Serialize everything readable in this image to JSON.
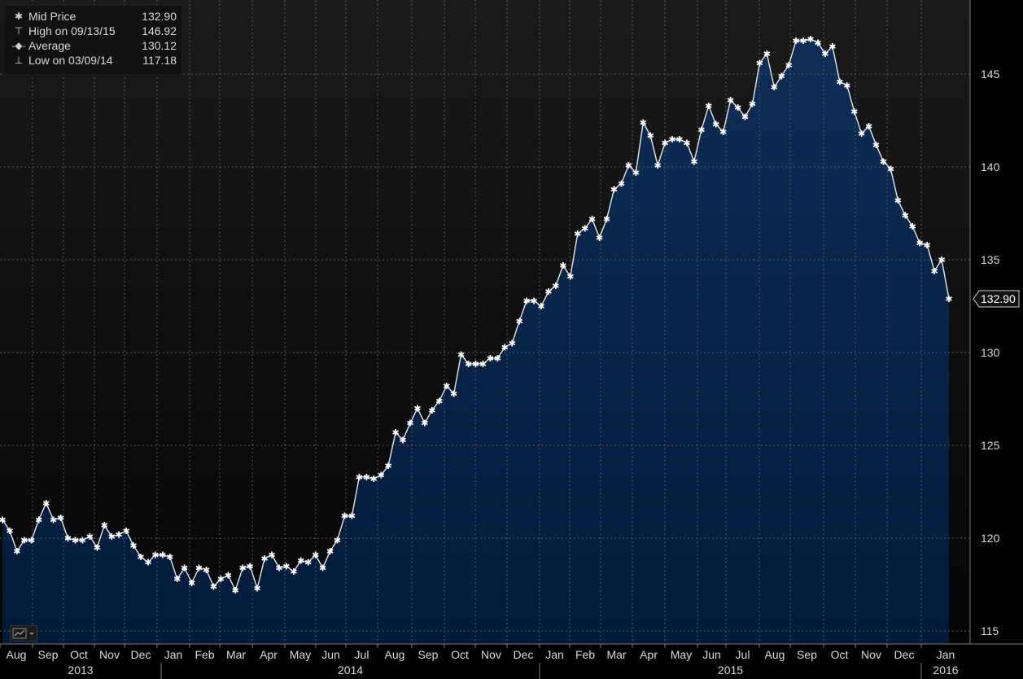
{
  "legend": {
    "items": [
      {
        "symbol": "✱",
        "label": "Mid Price",
        "value": "132.90"
      },
      {
        "symbol": "⊤",
        "label": "High on 09/13/15",
        "value": "146.92"
      },
      {
        "symbol": "-◆-",
        "label": "Average",
        "value": "130.12"
      },
      {
        "symbol": "⊥",
        "label": "Low on 03/09/14",
        "value": "117.18"
      }
    ]
  },
  "last_price_tag": "132.90",
  "colors": {
    "background": "#000000",
    "area_top": "#0f2d55",
    "area_bottom": "#001a3a",
    "line": "#e6e6e6",
    "grid": "#5a5a5a",
    "text": "#d9d9d9"
  },
  "chart_data": {
    "type": "area",
    "title": "",
    "xlabel": "",
    "ylabel": "",
    "ylim": [
      114.3,
      149
    ],
    "grid": true,
    "legend_position": "top-left",
    "y_ticks": [
      "115",
      "120",
      "125",
      "130",
      "135",
      "140",
      "145"
    ],
    "month_labels": [
      "Aug",
      "Sep",
      "Oct",
      "Nov",
      "Dec",
      "Jan",
      "Feb",
      "Mar",
      "Apr",
      "May",
      "Jun",
      "Jul",
      "Aug",
      "Sep",
      "Oct",
      "Nov",
      "Dec",
      "Jan",
      "Feb",
      "Mar",
      "Apr",
      "May",
      "Jun",
      "Jul",
      "Aug",
      "Sep",
      "Oct",
      "Nov",
      "Dec",
      "Jan"
    ],
    "year_labels": [
      "2013",
      "2014",
      "2015",
      "2016"
    ],
    "series": [
      {
        "name": "Mid Price",
        "values": [
          121.0,
          120.4,
          119.3,
          119.9,
          119.9,
          121.0,
          121.9,
          121.0,
          121.1,
          120.0,
          119.9,
          119.9,
          120.1,
          119.5,
          120.7,
          120.1,
          120.2,
          120.4,
          119.6,
          119.0,
          118.7,
          119.1,
          119.1,
          119.0,
          117.8,
          118.4,
          117.6,
          118.4,
          118.3,
          117.4,
          117.8,
          118.0,
          117.2,
          118.4,
          118.5,
          117.3,
          118.9,
          119.1,
          118.4,
          118.5,
          118.2,
          118.8,
          118.7,
          119.1,
          118.4,
          119.3,
          119.9,
          121.2,
          121.2,
          123.3,
          123.3,
          123.2,
          123.4,
          123.9,
          125.7,
          125.3,
          126.2,
          127.0,
          126.2,
          126.9,
          127.4,
          128.2,
          127.8,
          129.9,
          129.4,
          129.4,
          129.4,
          129.7,
          129.7,
          130.3,
          130.5,
          131.7,
          132.8,
          132.8,
          132.5,
          133.3,
          133.6,
          134.7,
          134.1,
          136.4,
          136.7,
          137.2,
          136.2,
          137.2,
          138.8,
          139.1,
          140.1,
          139.7,
          142.4,
          141.7,
          140.1,
          141.3,
          141.5,
          141.5,
          141.3,
          140.3,
          142.0,
          143.3,
          142.3,
          141.9,
          143.6,
          143.2,
          142.7,
          143.4,
          145.6,
          146.1,
          144.3,
          144.9,
          145.5,
          146.8,
          146.8,
          146.9,
          146.7,
          146.1,
          146.5,
          144.6,
          144.4,
          143.0,
          141.8,
          142.2,
          141.2,
          140.3,
          139.9,
          138.2,
          137.4,
          136.8,
          135.9,
          135.8,
          134.4,
          135.0,
          132.9
        ]
      }
    ]
  }
}
